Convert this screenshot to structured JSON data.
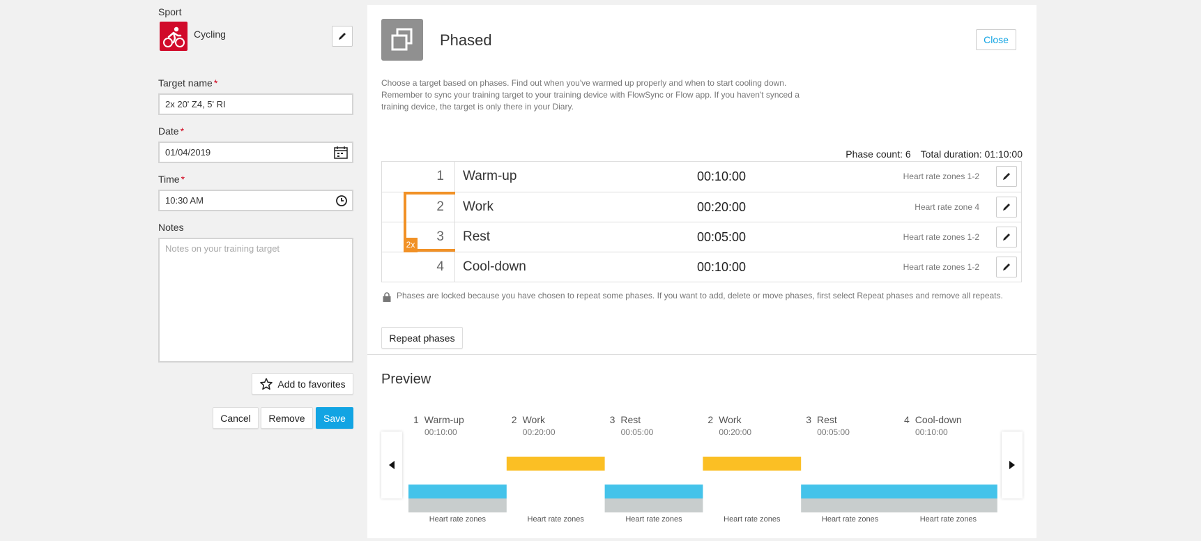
{
  "form": {
    "sport_label": "Sport",
    "sport_value": "Cycling",
    "target_name_label": "Target name",
    "target_name_value": "2x 20' Z4, 5' RI",
    "date_label": "Date",
    "date_value": "01/04/2019",
    "time_label": "Time",
    "time_value": "10:30 AM",
    "notes_label": "Notes",
    "notes_placeholder": "Notes on your training target",
    "required_mark": "*",
    "favorites_label": "Add to favorites",
    "cancel_label": "Cancel",
    "remove_label": "Remove",
    "save_label": "Save"
  },
  "panel": {
    "title": "Phased",
    "close_label": "Close",
    "description": "Choose a target based on phases. Find out when you've warmed up properly and when to start cooling down. Remember to sync your training target to your training device with FlowSync or Flow app. If you haven't synced a training device, the target is only there in your Diary.",
    "phase_count": "Phase count: 6",
    "total_duration": "Total duration: 01:10:00",
    "phases": [
      {
        "num": "1",
        "name": "Warm-up",
        "duration": "00:10:00",
        "zone": "Heart rate zones 1-2"
      },
      {
        "num": "2",
        "name": "Work",
        "duration": "00:20:00",
        "zone": "Heart rate zone 4"
      },
      {
        "num": "3",
        "name": "Rest",
        "duration": "00:05:00",
        "zone": "Heart rate zones 1-2"
      },
      {
        "num": "4",
        "name": "Cool-down",
        "duration": "00:10:00",
        "zone": "Heart rate zones 1-2"
      }
    ],
    "repeat_badge": "2x",
    "lock_note": "Phases are locked because you have chosen to repeat some phases. If you want to add, delete or move phases, first select Repeat phases and remove all repeats.",
    "repeat_label": "Repeat phases",
    "preview_title": "Preview"
  },
  "preview": {
    "colors": {
      "low": "#44c3ea",
      "base": "#c8cdcd",
      "high": "#fbbf24"
    },
    "segments": [
      {
        "num": "1",
        "name": "Warm-up",
        "duration": "00:10:00",
        "level": "low",
        "zone_label": "Heart rate zones"
      },
      {
        "num": "2",
        "name": "Work",
        "duration": "00:20:00",
        "level": "high",
        "zone_label": "Heart rate zones"
      },
      {
        "num": "3",
        "name": "Rest",
        "duration": "00:05:00",
        "level": "low",
        "zone_label": "Heart rate zones"
      },
      {
        "num": "2",
        "name": "Work",
        "duration": "00:20:00",
        "level": "high",
        "zone_label": "Heart rate zones"
      },
      {
        "num": "3",
        "name": "Rest",
        "duration": "00:05:00",
        "level": "low",
        "zone_label": "Heart rate zones"
      },
      {
        "num": "4",
        "name": "Cool-down",
        "duration": "00:10:00",
        "level": "low",
        "zone_label": "Heart rate zones"
      }
    ]
  }
}
